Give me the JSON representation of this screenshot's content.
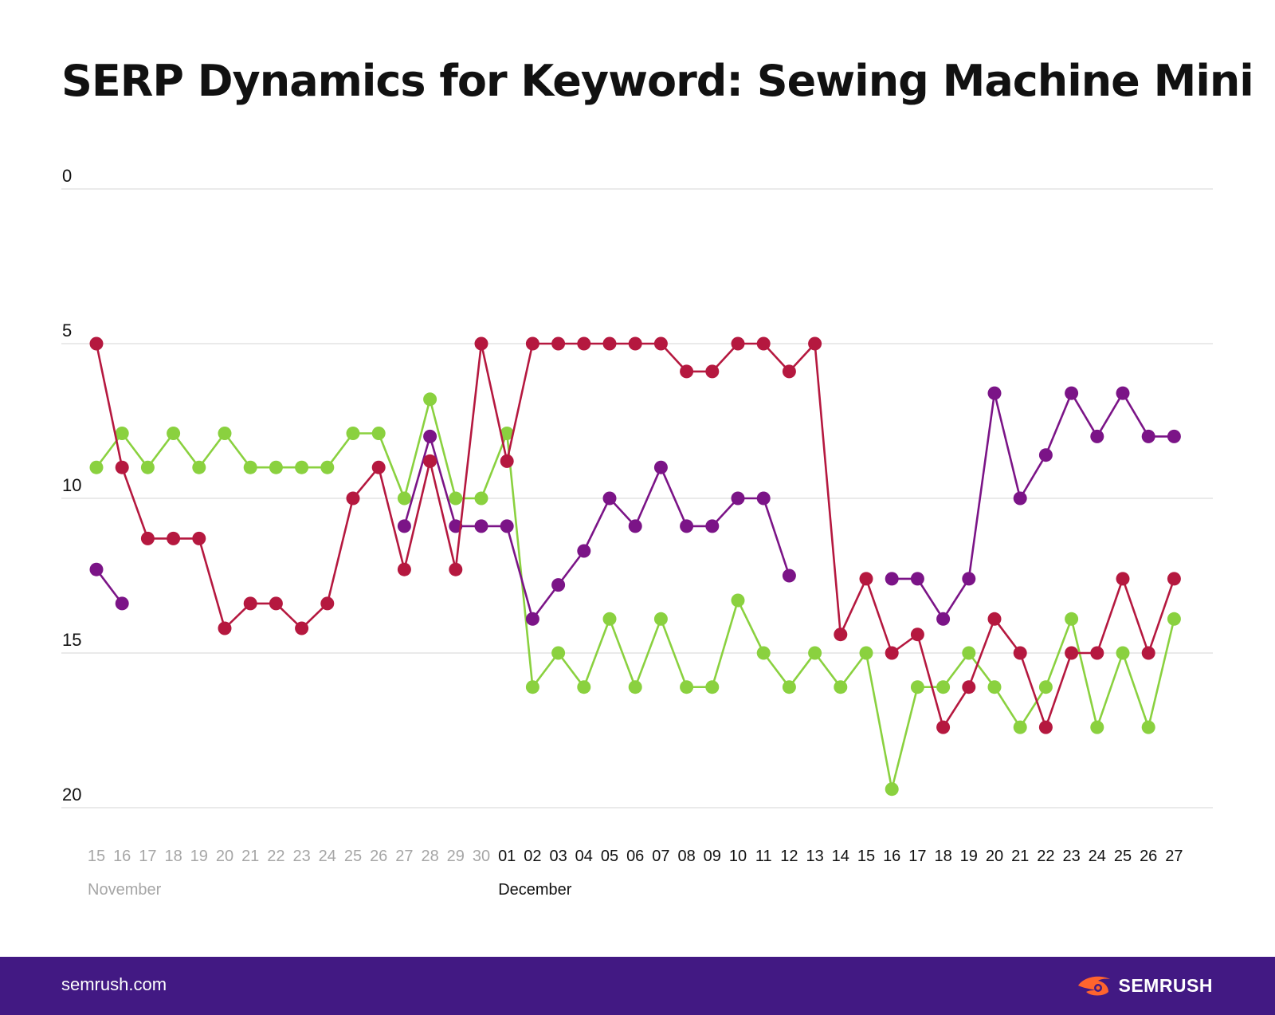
{
  "title": "SERP Dynamics for Keyword: Sewing Machine Mini",
  "footer": {
    "site": "semrush.com",
    "brand": "SEMRUSH",
    "brand_icon": "semrush-flame-logo"
  },
  "colors": {
    "green": "#8ad13f",
    "purple": "#7b1487",
    "crimson": "#b5183f",
    "footer_bg": "#421983",
    "logo_orange": "#ff642d",
    "grid": "#e4e4e4",
    "gray_text": "#a6a6a6",
    "dark_text": "#111111"
  },
  "chart_data": {
    "type": "line",
    "y_axis": {
      "inverted": true,
      "range": [
        0,
        20
      ],
      "ticks": [
        "0",
        "5",
        "10",
        "15",
        "20"
      ]
    },
    "grid": true,
    "x": [
      "15",
      "16",
      "17",
      "18",
      "19",
      "20",
      "21",
      "22",
      "23",
      "24",
      "25",
      "26",
      "27",
      "28",
      "29",
      "30",
      "01",
      "02",
      "03",
      "04",
      "05",
      "06",
      "07",
      "08",
      "09",
      "10",
      "11",
      "12",
      "13",
      "14",
      "15",
      "16",
      "17",
      "18",
      "19",
      "20",
      "21",
      "22",
      "23",
      "24",
      "25",
      "26",
      "27"
    ],
    "month_labels": [
      {
        "label": "November",
        "index": 0
      },
      {
        "label": "December",
        "index": 16
      }
    ],
    "dimmed_count": 16,
    "series": [
      {
        "color": "#8ad13f",
        "values": [
          9.0,
          7.9,
          9.0,
          7.9,
          9.0,
          7.9,
          9.0,
          9.0,
          9.0,
          9.0,
          7.9,
          7.9,
          10.0,
          6.8,
          10.0,
          10.0,
          7.9,
          16.1,
          15.0,
          16.1,
          13.9,
          16.1,
          13.9,
          16.1,
          16.1,
          13.3,
          15.0,
          16.1,
          15.0,
          16.1,
          15.0,
          19.4,
          16.1,
          16.1,
          15.0,
          16.1,
          17.4,
          16.1,
          13.9,
          17.4,
          15.0,
          17.4,
          13.9
        ]
      },
      {
        "color": "#7b1487",
        "values": [
          12.3,
          13.4,
          null,
          null,
          null,
          null,
          null,
          null,
          null,
          null,
          null,
          null,
          10.9,
          8.0,
          10.9,
          10.9,
          10.9,
          13.9,
          12.8,
          11.7,
          10.0,
          10.9,
          9.0,
          10.9,
          10.9,
          10.0,
          10.0,
          12.5,
          null,
          null,
          null,
          12.6,
          12.6,
          13.9,
          12.6,
          6.6,
          10.0,
          8.6,
          6.6,
          8.0,
          6.6,
          8.0,
          8.0
        ]
      },
      {
        "color": "#b5183f",
        "values": [
          5.0,
          9.0,
          11.3,
          11.3,
          11.3,
          14.2,
          13.4,
          13.4,
          14.2,
          13.4,
          10.0,
          9.0,
          12.3,
          8.8,
          12.3,
          5.0,
          8.8,
          5.0,
          5.0,
          5.0,
          5.0,
          5.0,
          5.0,
          5.9,
          5.9,
          5.0,
          5.0,
          5.9,
          5.0,
          14.4,
          12.6,
          15.0,
          14.4,
          17.4,
          16.1,
          13.9,
          15.0,
          17.4,
          15.0,
          15.0,
          12.6,
          15.0,
          12.6
        ]
      }
    ]
  }
}
